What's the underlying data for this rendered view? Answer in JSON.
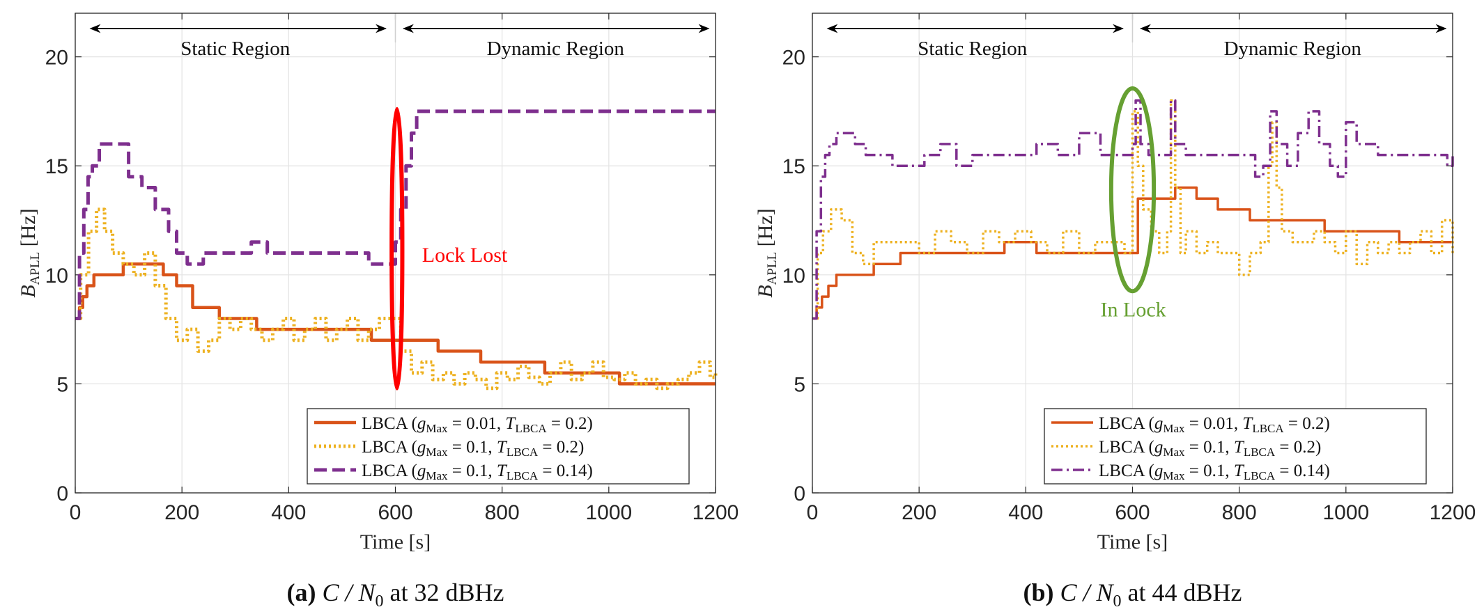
{
  "colors": {
    "orange": "#d95319",
    "yellow": "#edb120",
    "purple": "#7e2f8e",
    "red": "#ff0000",
    "green": "#66a032",
    "grid": "#e3e3e3",
    "axis": "#262626"
  },
  "chart_data": [
    {
      "type": "line",
      "caption": {
        "letter": "(a)",
        "prefix": "C / N",
        "sub": "0",
        "suffix": "at 32 dBHz"
      },
      "xlabel": "Time [s]",
      "ylabel": {
        "main": "B",
        "sub": "APLL",
        "unit": " [Hz]"
      },
      "xlim": [
        0,
        1200
      ],
      "ylim": [
        0,
        22
      ],
      "xticks": [
        0,
        200,
        400,
        600,
        800,
        1000,
        1200
      ],
      "yticks": [
        0,
        5,
        10,
        15,
        20
      ],
      "grid": true,
      "regions": [
        {
          "label": "Static Region",
          "from": 0,
          "to": 600
        },
        {
          "label": "Dynamic Region",
          "from": 600,
          "to": 1200
        }
      ],
      "annotation": {
        "text": "Lock Lost",
        "color": "#ff0000",
        "ellipse": {
          "cx": 603,
          "cy": 11.2,
          "rx": 10,
          "ry": 6.4
        }
      },
      "annotation_text_pos": [
        650,
        10.6
      ],
      "legend_location": "bottom-right",
      "series": [
        {
          "name": "LBCA (g_Max = 0.01, T_LBCA = 0.2)",
          "legend": {
            "pre": "LBCA (",
            "g": "g",
            "gsub": "Max",
            "gval": " = 0.01, ",
            "t": "T",
            "tsub": "LBCA",
            "tval": " = 0.2)"
          },
          "color": "#d95319",
          "style": "solid",
          "width": 4.5,
          "x": [
            0,
            8,
            14,
            22,
            35,
            50,
            75,
            90,
            145,
            165,
            190,
            220,
            270,
            340,
            395,
            540,
            555,
            625,
            680,
            760,
            880,
            1020,
            1200
          ],
          "y": [
            8,
            8.5,
            9,
            9.5,
            10,
            10,
            10,
            10.5,
            10.5,
            10,
            9.5,
            8.5,
            8,
            7.5,
            7.5,
            7.5,
            7,
            7,
            6.5,
            6,
            5.5,
            5,
            5
          ]
        },
        {
          "name": "LBCA (g_Max = 0.1, T_LBCA = 0.2)",
          "legend": {
            "pre": "LBCA (",
            "g": "g",
            "gsub": "Max",
            "gval": " = 0.1, ",
            "t": "T",
            "tsub": "LBCA",
            "tval": " = 0.2)"
          },
          "color": "#edb120",
          "style": "dotted",
          "width": 5,
          "x": [
            0,
            10,
            25,
            40,
            55,
            70,
            90,
            110,
            130,
            150,
            170,
            190,
            210,
            230,
            250,
            270,
            290,
            310,
            330,
            350,
            370,
            390,
            410,
            430,
            450,
            470,
            490,
            510,
            530,
            550,
            570,
            590,
            610,
            630,
            650,
            670,
            690,
            710,
            730,
            750,
            770,
            790,
            810,
            830,
            850,
            870,
            890,
            910,
            930,
            950,
            970,
            990,
            1010,
            1030,
            1050,
            1070,
            1090,
            1110,
            1130,
            1150,
            1170,
            1190,
            1200
          ],
          "y": [
            8,
            10,
            12,
            13,
            12,
            11,
            10.5,
            10,
            11,
            9.5,
            8,
            7,
            7.5,
            6.5,
            7,
            8,
            7.5,
            8,
            7.5,
            7,
            7.5,
            8,
            7,
            7.5,
            8,
            7,
            7.5,
            8,
            7,
            7.5,
            8,
            8,
            6.5,
            5.5,
            6,
            5.2,
            5.5,
            5,
            5.5,
            5.2,
            4.8,
            5.5,
            5.2,
            5.8,
            5.3,
            5,
            5.5,
            6,
            5.2,
            5.5,
            6,
            5.3,
            5.2,
            5.5,
            5,
            5.2,
            4.8,
            5,
            5.2,
            5.5,
            6,
            5.3,
            5.5
          ]
        },
        {
          "name": "LBCA (g_Max = 0.1, T_LBCA = 0.14)",
          "legend": {
            "pre": "LBCA (",
            "g": "g",
            "gsub": "Max",
            "gval": " = 0.1, ",
            "t": "T",
            "tsub": "LBCA",
            "tval": " = 0.14)"
          },
          "color": "#7e2f8e",
          "style": "dashed",
          "width": 5,
          "x": [
            0,
            8,
            16,
            24,
            32,
            45,
            60,
            75,
            100,
            125,
            150,
            175,
            190,
            210,
            240,
            270,
            300,
            330,
            360,
            400,
            440,
            480,
            520,
            550,
            575,
            590,
            600,
            610,
            620,
            630,
            640,
            700,
            800,
            900,
            1000,
            1100,
            1200
          ],
          "y": [
            8,
            11,
            13,
            14.5,
            15,
            16,
            16,
            16,
            14.5,
            14,
            13,
            12,
            11,
            10.5,
            11,
            11,
            11,
            11.5,
            11,
            11,
            11,
            11,
            11,
            10.5,
            10.5,
            10.5,
            11.5,
            13,
            15,
            16.5,
            17.5,
            17.5,
            17.5,
            17.5,
            17.5,
            17.5,
            17.5
          ]
        }
      ]
    },
    {
      "type": "line",
      "caption": {
        "letter": "(b)",
        "prefix": "C / N",
        "sub": "0",
        "suffix": "at 44 dBHz"
      },
      "xlabel": "Time [s]",
      "ylabel": {
        "main": "B",
        "sub": "APLL",
        "unit": " [Hz]"
      },
      "xlim": [
        0,
        1200
      ],
      "ylim": [
        0,
        22
      ],
      "xticks": [
        0,
        200,
        400,
        600,
        800,
        1000,
        1200
      ],
      "yticks": [
        0,
        5,
        10,
        15,
        20
      ],
      "grid": true,
      "regions": [
        {
          "label": "Static Region",
          "from": 0,
          "to": 600
        },
        {
          "label": "Dynamic Region",
          "from": 600,
          "to": 1200
        }
      ],
      "annotation": {
        "text": "In Lock",
        "color": "#66a032",
        "ellipse": {
          "cx": 600,
          "cy": 13.9,
          "rx": 40,
          "ry": 4.65
        }
      },
      "annotation_text_pos": [
        540,
        8.1
      ],
      "legend_location": "bottom-right",
      "series": [
        {
          "name": "LBCA (g_Max = 0.01, T_LBCA = 0.2)",
          "legend": {
            "pre": "LBCA (",
            "g": "g",
            "gsub": "Max",
            "gval": " = 0.01, ",
            "t": "T",
            "tsub": "LBCA",
            "tval": " = 0.2)"
          },
          "color": "#d95319",
          "style": "solid",
          "width": 3.5,
          "x": [
            0,
            8,
            18,
            30,
            45,
            70,
            115,
            165,
            360,
            420,
            600,
            610,
            680,
            720,
            760,
            820,
            880,
            960,
            1100,
            1200
          ],
          "y": [
            8,
            8.5,
            9,
            9.5,
            10,
            10,
            10.5,
            11,
            11.5,
            11,
            11,
            13.5,
            14,
            13.5,
            13,
            12.5,
            12.5,
            12,
            11.5,
            11.5
          ]
        },
        {
          "name": "LBCA (g_Max = 0.1, T_LBCA = 0.2)",
          "legend": {
            "pre": "LBCA (",
            "g": "g",
            "gsub": "Max",
            "gval": " = 0.1, ",
            "t": "T",
            "tsub": "LBCA",
            "tval": " = 0.2)"
          },
          "color": "#edb120",
          "style": "dotted",
          "width": 3.5,
          "x": [
            0,
            10,
            20,
            35,
            55,
            75,
            95,
            115,
            140,
            170,
            200,
            230,
            260,
            290,
            320,
            350,
            380,
            410,
            440,
            470,
            500,
            530,
            560,
            585,
            600,
            610,
            620,
            635,
            650,
            665,
            672,
            680,
            690,
            700,
            720,
            740,
            760,
            780,
            800,
            820,
            840,
            855,
            862,
            870,
            880,
            900,
            920,
            940,
            960,
            980,
            1000,
            1020,
            1040,
            1060,
            1080,
            1100,
            1120,
            1140,
            1160,
            1180,
            1200
          ],
          "y": [
            8,
            11,
            12,
            13,
            12.5,
            11,
            10.5,
            11.5,
            11.5,
            11.5,
            11,
            12,
            11.5,
            11,
            12,
            11.5,
            12,
            11.5,
            11,
            12,
            11,
            11.5,
            11.5,
            11,
            17.5,
            15,
            13,
            12,
            11,
            12,
            18,
            14,
            11,
            12,
            11,
            11.5,
            11,
            11,
            10,
            11,
            11.5,
            15,
            17,
            14,
            12,
            11.5,
            11.5,
            12,
            11.5,
            11,
            12,
            10.5,
            11.5,
            11,
            11.5,
            11,
            11.5,
            12,
            11,
            12.5,
            11
          ]
        },
        {
          "name": "LBCA (g_Max = 0.1, T_LBCA = 0.14)",
          "legend": {
            "pre": "LBCA (",
            "g": "g",
            "gsub": "Max",
            "gval": " = 0.1, ",
            "t": "T",
            "tsub": "LBCA",
            "tval": " = 0.14)"
          },
          "color": "#7e2f8e",
          "style": "dashdot",
          "width": 3.5,
          "x": [
            0,
            8,
            16,
            24,
            32,
            45,
            60,
            80,
            100,
            120,
            150,
            180,
            210,
            240,
            270,
            300,
            340,
            380,
            420,
            460,
            500,
            540,
            580,
            600,
            606,
            615,
            630,
            650,
            672,
            680,
            700,
            750,
            800,
            830,
            845,
            858,
            870,
            890,
            910,
            930,
            950,
            970,
            985,
            1000,
            1020,
            1060,
            1100,
            1140,
            1180,
            1190,
            1200
          ],
          "y": [
            8,
            12,
            14.5,
            15.5,
            16,
            16.5,
            16.5,
            16,
            15.5,
            15.5,
            15,
            15,
            15.5,
            16,
            15,
            15.5,
            15.5,
            15.5,
            16,
            15.5,
            16.5,
            15.5,
            15.5,
            16,
            18,
            16,
            15.5,
            15.5,
            18,
            16,
            15.5,
            15.5,
            15.5,
            14.5,
            15,
            17.5,
            16,
            15,
            16.5,
            17.5,
            16,
            15,
            14.5,
            17,
            16,
            15.5,
            15.5,
            15.5,
            15.5,
            15,
            15.5
          ]
        }
      ]
    }
  ]
}
